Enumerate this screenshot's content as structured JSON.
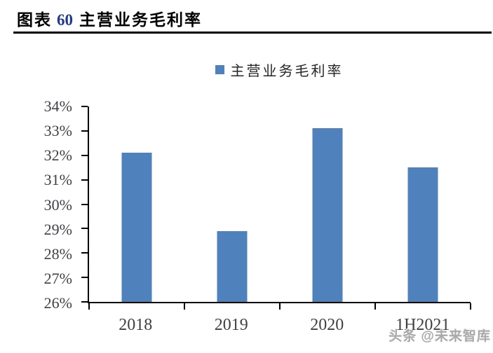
{
  "header": {
    "figure_label": "图表",
    "figure_number": "60",
    "title": "主营业务毛利率"
  },
  "chart_data": {
    "type": "bar",
    "title": "主营业务毛利率",
    "legend": [
      "主营业务毛利率"
    ],
    "legend_position": "top-center",
    "categories": [
      "2018",
      "2019",
      "2020",
      "1H2021"
    ],
    "values": [
      32.1,
      28.9,
      33.1,
      31.5
    ],
    "unit": "%",
    "xlabel": "",
    "ylabel": "",
    "ylim": [
      26,
      34
    ],
    "ytick_step": 1,
    "ytick_labels": [
      "26%",
      "27%",
      "28%",
      "29%",
      "30%",
      "31%",
      "32%",
      "33%",
      "34%"
    ],
    "grid": false
  },
  "colors": {
    "bar": "#4F81BD",
    "figure_number": "#1F3B8C",
    "axis": "#000000",
    "tick_label": "#3f3f46",
    "watermark": "#a9a9a9"
  },
  "watermark": {
    "text": "头条 @未来智库"
  }
}
